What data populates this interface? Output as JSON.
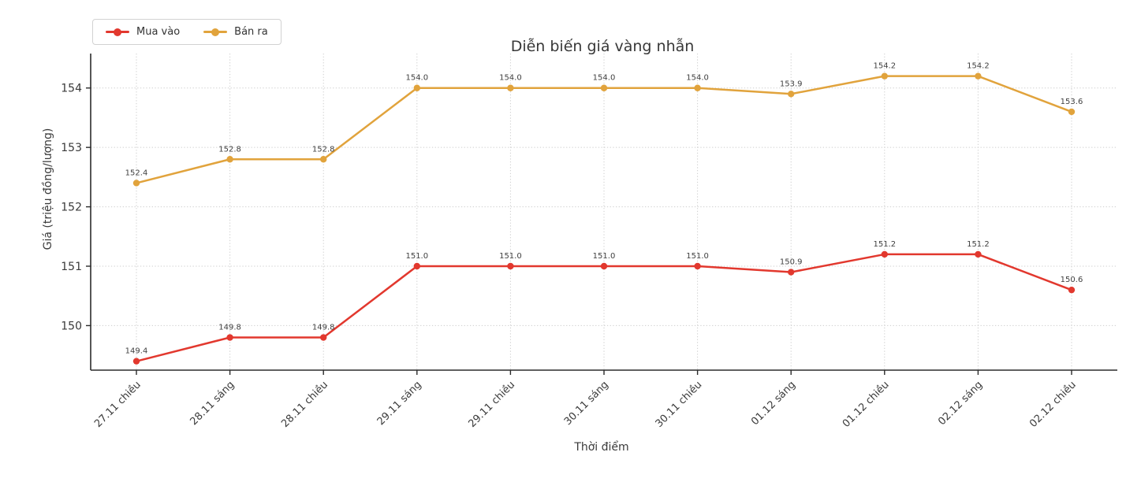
{
  "page": {
    "background": "#ffffff"
  },
  "chart_data": {
    "type": "line",
    "title": "Diễn biến giá vàng nhẫn",
    "xlabel": "Thời điểm",
    "ylabel": "Giá (triệu đồng/lượng)",
    "categories": [
      "27.11 chiều",
      "28.11 sáng",
      "28.11 chiều",
      "29.11 sáng",
      "29.11 chiều",
      "30.11 sáng",
      "30.11 chiều",
      "01.12 sáng",
      "01.12 chiều",
      "02.12 sáng",
      "02.12 chiều"
    ],
    "series": [
      {
        "name": "Mua vào",
        "color": "#e2382e",
        "values": [
          149.4,
          149.8,
          149.8,
          151.0,
          151.0,
          151.0,
          151.0,
          150.9,
          151.2,
          151.2,
          150.6
        ]
      },
      {
        "name": "Bán ra",
        "color": "#e1a33c",
        "values": [
          152.4,
          152.8,
          152.8,
          154.0,
          154.0,
          154.0,
          154.0,
          153.9,
          154.2,
          154.2,
          153.6
        ]
      }
    ],
    "yticks": [
      154,
      153,
      152,
      151,
      150
    ],
    "ylim": [
      149.25,
      154.58
    ],
    "grid": true,
    "grid_style": "dotted",
    "legend_position": "top-left",
    "data_labels": true,
    "data_label_decimals": 1
  },
  "colors": {
    "axis": "#2b2b2b",
    "grid": "#cdcdcd",
    "tick_text": "#3a3a3a",
    "data_label_text": "#3f3f3f",
    "title_text": "#383838",
    "legend_border": "#d2d2d2"
  }
}
